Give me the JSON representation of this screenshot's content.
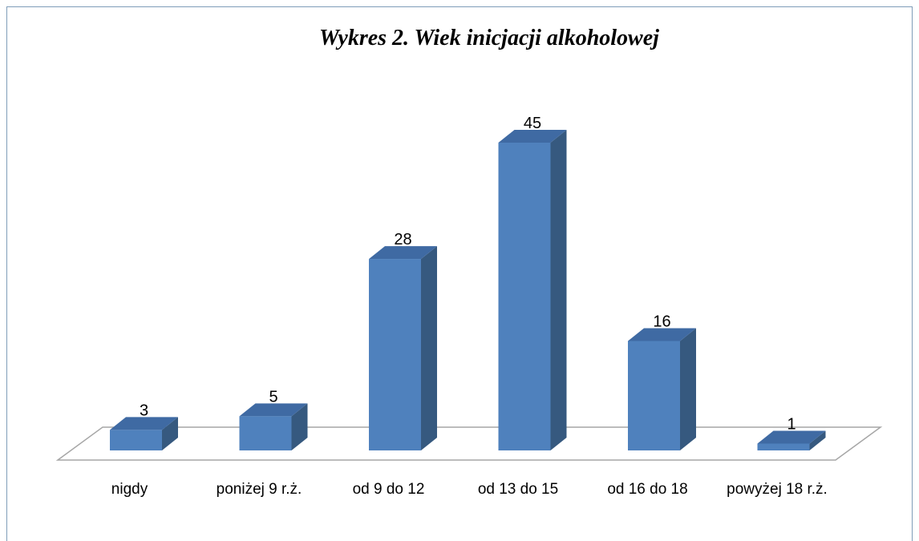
{
  "chart_data": {
    "type": "bar3d",
    "title": "Wykres 2. Wiek inicjacji alkoholowej",
    "categories": [
      "nigdy",
      "poniżej 9 r.ż.",
      "od 9 do 12",
      "od 13 do 15",
      "od 16 do 18",
      "powyżej 18 r.ż."
    ],
    "values": [
      3,
      5,
      28,
      45,
      16,
      1
    ],
    "color": "#4f81bd"
  }
}
